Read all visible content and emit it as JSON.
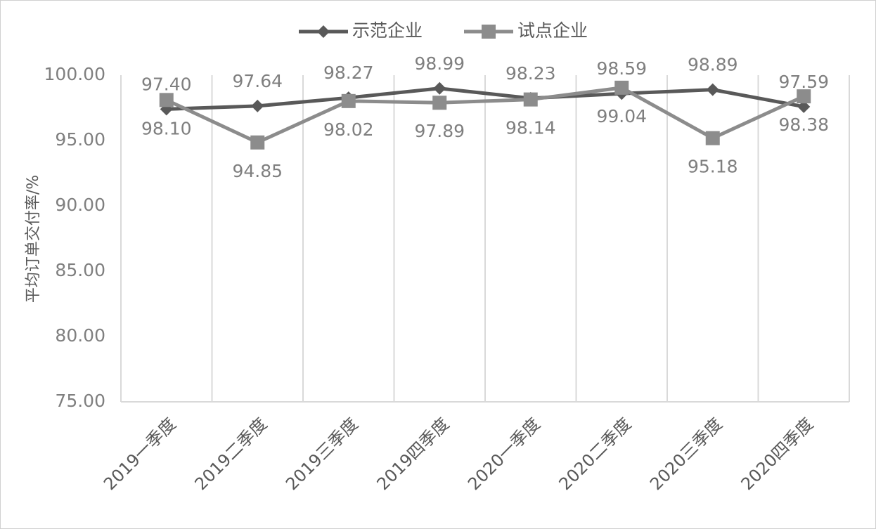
{
  "chart_data": {
    "type": "line",
    "y_label": "平均订单交付率/%",
    "categories": [
      "2019一季度",
      "2019二季度",
      "2019三季度",
      "2019四季度",
      "2020一季度",
      "2020二季度",
      "2020三季度",
      "2020四季度"
    ],
    "series": [
      {
        "name": "示范企业",
        "color": "#595959",
        "marker": "diamond",
        "values": [
          97.4,
          97.64,
          98.27,
          98.99,
          98.23,
          98.59,
          98.89,
          97.59
        ],
        "value_labels": [
          "97.40",
          "97.64",
          "98.27",
          "98.99",
          "98.23",
          "98.59",
          "98.89",
          "97.59"
        ]
      },
      {
        "name": "试点企业",
        "color": "#8c8c8c",
        "marker": "square",
        "values": [
          98.1,
          94.85,
          98.02,
          97.89,
          98.14,
          99.04,
          95.18,
          98.38
        ],
        "value_labels": [
          "98.10",
          "94.85",
          "98.02",
          "97.89",
          "98.14",
          "99.04",
          "95.18",
          "98.38"
        ]
      }
    ],
    "ylim": [
      75,
      100
    ],
    "yticks": [
      {
        "value": 75,
        "label": "75.00"
      },
      {
        "value": 80,
        "label": "80.00"
      },
      {
        "value": 85,
        "label": "85.00"
      },
      {
        "value": 90,
        "label": "90.00"
      },
      {
        "value": 95,
        "label": "95.00"
      },
      {
        "value": 100,
        "label": "100.00"
      }
    ],
    "legend": "top"
  }
}
